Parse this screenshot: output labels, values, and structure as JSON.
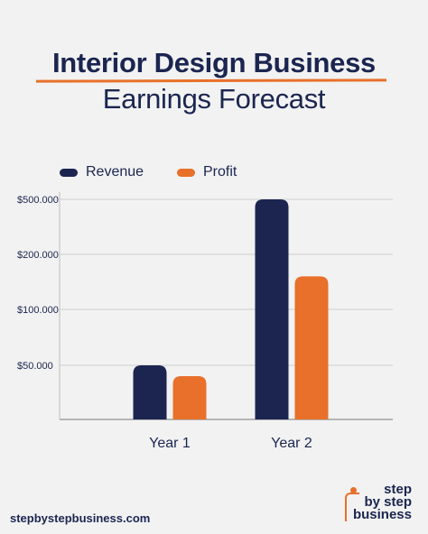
{
  "header": {
    "title_line1": "Interior Design Business",
    "title_line2": "Earnings Forecast"
  },
  "footer": {
    "url": "stepbystepbusiness.com",
    "logo_line1": "step",
    "logo_line2": "by step",
    "logo_line3": "business"
  },
  "colors": {
    "revenue": "#1b2550",
    "profit": "#e8702a",
    "text": "#1b2550",
    "accent": "#e8702a",
    "grid": "#cfcfcf",
    "background": "#f2f2f2"
  },
  "chart_data": {
    "type": "bar",
    "title": "Interior Design Business Earnings Forecast",
    "xlabel": "",
    "ylabel": "",
    "categories": [
      "Year 1",
      "Year 2"
    ],
    "y_ticks": [
      "$500.000",
      "$200.000",
      "$100.000",
      "$50.000"
    ],
    "y_tick_values": [
      500000,
      200000,
      100000,
      50000
    ],
    "series": [
      {
        "name": "Revenue",
        "values": [
          50000,
          500000
        ]
      },
      {
        "name": "Profit",
        "values": [
          40000,
          160000
        ]
      }
    ],
    "grid": true,
    "legend": "top-left"
  }
}
